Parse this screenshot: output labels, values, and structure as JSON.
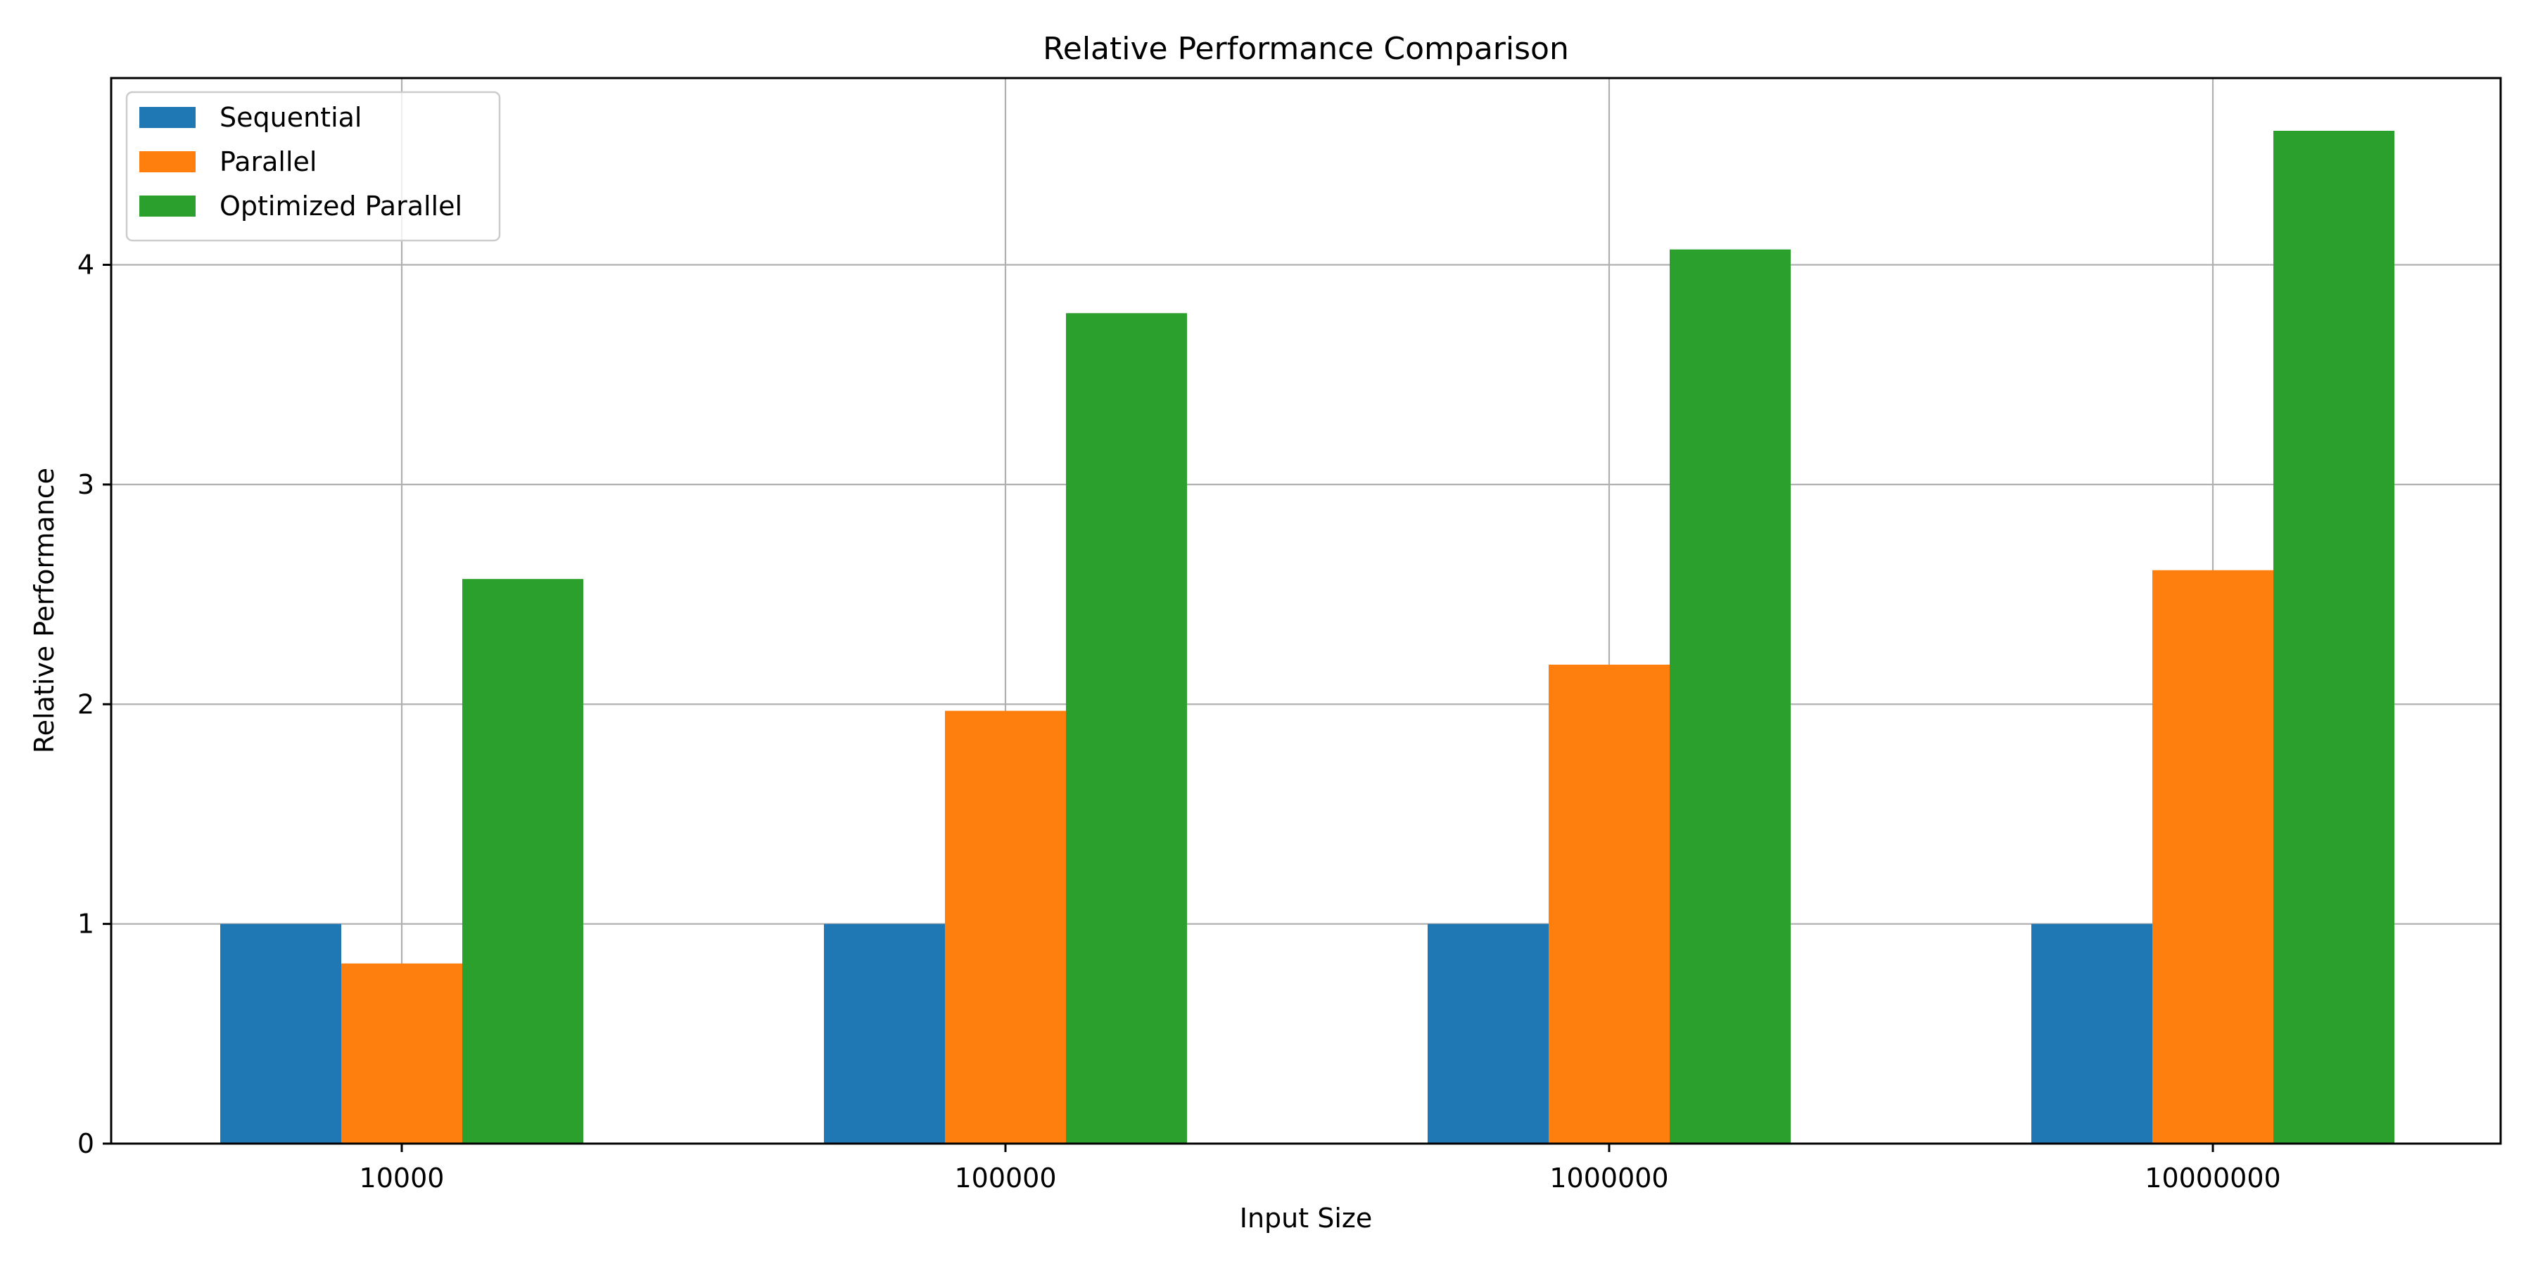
{
  "chart_data": {
    "type": "bar",
    "title": "Relative Performance Comparison",
    "xlabel": "Input Size",
    "ylabel": "Relative Performance",
    "categories": [
      "10000",
      "100000",
      "1000000",
      "10000000"
    ],
    "series": [
      {
        "name": "Sequential",
        "color": "#1f77b4",
        "values": [
          1.0,
          1.0,
          1.0,
          1.0
        ]
      },
      {
        "name": "Parallel",
        "color": "#ff7f0e",
        "values": [
          0.82,
          1.97,
          2.18,
          2.61
        ]
      },
      {
        "name": "Optimized Parallel",
        "color": "#2ca02c",
        "values": [
          2.57,
          3.78,
          4.07,
          4.61
        ]
      }
    ],
    "ylim": [
      0,
      4.85
    ],
    "yticks": [
      "0",
      "1",
      "2",
      "3",
      "4"
    ],
    "grid": true,
    "legend_position": "top-left"
  }
}
